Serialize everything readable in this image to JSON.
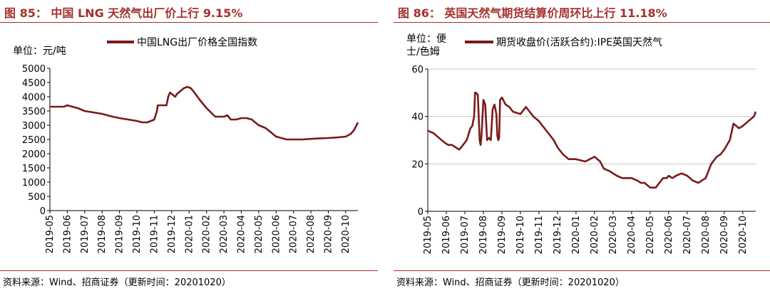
{
  "charts": [
    {
      "id": "left",
      "title": "图 85： 中国 LNG 天然气出厂价上行 9.15%",
      "unit": "单位：元/吨",
      "source": "资料来源：Wind、招商证券（更新时间：20201020）",
      "accent_color": "#a5302c",
      "line_color": "#7a1a1a"
    },
    {
      "id": "right",
      "title": "图 86： 英国天然气期货结算价周环比上行 11.18%",
      "unit": [
        "单位：便",
        "士/色姆"
      ],
      "source": "资料来源：Wind、招商证券（更新时间：20201020）",
      "accent_color": "#a5302c",
      "line_color": "#7a1a1a"
    }
  ],
  "chart_data": [
    {
      "type": "line",
      "title": "图 85： 中国 LNG 天然气出厂价上行 9.15%",
      "ylabel": "单位：元/吨",
      "ylim": [
        0,
        5000
      ],
      "yticks": [
        "5000",
        "4500",
        "4000",
        "3500",
        "3000",
        "2500",
        "2000",
        "1500",
        "1000",
        "500",
        "0"
      ],
      "xlim": [
        0,
        17.7
      ],
      "categories": [
        "2019-05",
        "2019-06",
        "2019-07",
        "2019-08",
        "2019-09",
        "2019-10",
        "2019-11",
        "2019-12",
        "2020-01",
        "2020-02",
        "2020-03",
        "2020-04",
        "2020-05",
        "2020-06",
        "2020-07",
        "2020-08",
        "2020-09",
        "2020-10"
      ],
      "legend_position": "top",
      "grid": false,
      "series": [
        {
          "name": "中国LNG出厂价格全国指数",
          "x": [
            0,
            0.4,
            0.8,
            1.0,
            1.3,
            1.6,
            2.0,
            2.5,
            3.0,
            3.3,
            3.6,
            4.0,
            4.5,
            5.0,
            5.3,
            5.6,
            5.8,
            6.0,
            6.15,
            6.2,
            6.5,
            6.7,
            6.8,
            6.9,
            7.0,
            7.2,
            7.3,
            7.5,
            7.7,
            7.9,
            8.1,
            8.3,
            8.6,
            9.0,
            9.5,
            10.0,
            10.2,
            10.4,
            10.7,
            11.0,
            11.3,
            11.6,
            12.0,
            12.4,
            12.8,
            13.0,
            13.3,
            13.6,
            14.0,
            14.5,
            15.0,
            15.5,
            16.0,
            16.5,
            17.0,
            17.3,
            17.5,
            17.7
          ],
          "values": [
            3650,
            3650,
            3650,
            3700,
            3650,
            3600,
            3500,
            3450,
            3400,
            3350,
            3300,
            3250,
            3200,
            3150,
            3100,
            3100,
            3150,
            3200,
            3500,
            3700,
            3700,
            3700,
            4000,
            4150,
            4100,
            4000,
            4100,
            4200,
            4300,
            4350,
            4300,
            4150,
            3900,
            3600,
            3300,
            3300,
            3350,
            3200,
            3200,
            3250,
            3250,
            3200,
            3000,
            2900,
            2700,
            2600,
            2550,
            2500,
            2500,
            2500,
            2520,
            2540,
            2550,
            2570,
            2600,
            2700,
            2850,
            3100
          ]
        }
      ]
    },
    {
      "type": "line",
      "title": "图 86： 英国天然气期货结算价周环比上行 11.18%",
      "ylabel": "单位：便士/色姆",
      "ylim": [
        0,
        60
      ],
      "yticks": [
        "60",
        "40",
        "20",
        "0"
      ],
      "xlim": [
        0,
        17.7
      ],
      "categories": [
        "2019-05",
        "2019-06",
        "2019-07",
        "2019-08",
        "2019-09",
        "2019-10",
        "2019-11",
        "2019-12",
        "2020-01",
        "2020-02",
        "2020-03",
        "2020-04",
        "2020-05",
        "2020-06",
        "2020-07",
        "2020-08",
        "2020-09",
        "2020-10"
      ],
      "legend_position": "top",
      "grid": true,
      "series": [
        {
          "name": "期货收盘价(活跃合约):IPE英国天然气",
          "x": [
            0,
            0.3,
            0.6,
            0.9,
            1.1,
            1.3,
            1.5,
            1.7,
            1.9,
            2.1,
            2.3,
            2.4,
            2.5,
            2.55,
            2.6,
            2.7,
            2.8,
            2.85,
            2.9,
            3.0,
            3.05,
            3.1,
            3.2,
            3.3,
            3.4,
            3.5,
            3.6,
            3.7,
            3.75,
            3.8,
            3.85,
            3.9,
            4.0,
            4.2,
            4.4,
            4.6,
            5.0,
            5.3,
            5.5,
            5.7,
            6.0,
            6.2,
            6.5,
            6.8,
            7.0,
            7.3,
            7.6,
            8.0,
            8.5,
            9.0,
            9.3,
            9.5,
            9.8,
            10.2,
            10.5,
            10.7,
            11.0,
            11.3,
            11.5,
            11.7,
            12.0,
            12.3,
            12.5,
            12.7,
            12.9,
            13.0,
            13.2,
            13.4,
            13.7,
            14.0,
            14.3,
            14.6,
            14.8,
            15.0,
            15.3,
            15.6,
            15.8,
            16.0,
            16.3,
            16.5,
            16.8,
            17.0,
            17.3,
            17.6,
            17.7
          ],
          "values": [
            34,
            33,
            31,
            29,
            28,
            28,
            27,
            26,
            28,
            30,
            35,
            36,
            40,
            50,
            50,
            49,
            30,
            28,
            32,
            47,
            46,
            45,
            30,
            31,
            30,
            43,
            45,
            41,
            32,
            30,
            31,
            47,
            48,
            45,
            44,
            42,
            41,
            44,
            42,
            40,
            38,
            36,
            33,
            30,
            27,
            24,
            22,
            22,
            21,
            23,
            21,
            18,
            17,
            15,
            14,
            14,
            14,
            13,
            12,
            12,
            10,
            10,
            12,
            14,
            14,
            15,
            14,
            15,
            16,
            15,
            13,
            12,
            13,
            14,
            20,
            23,
            24,
            26,
            30,
            37,
            35,
            36,
            38,
            40,
            42
          ]
        }
      ]
    }
  ]
}
